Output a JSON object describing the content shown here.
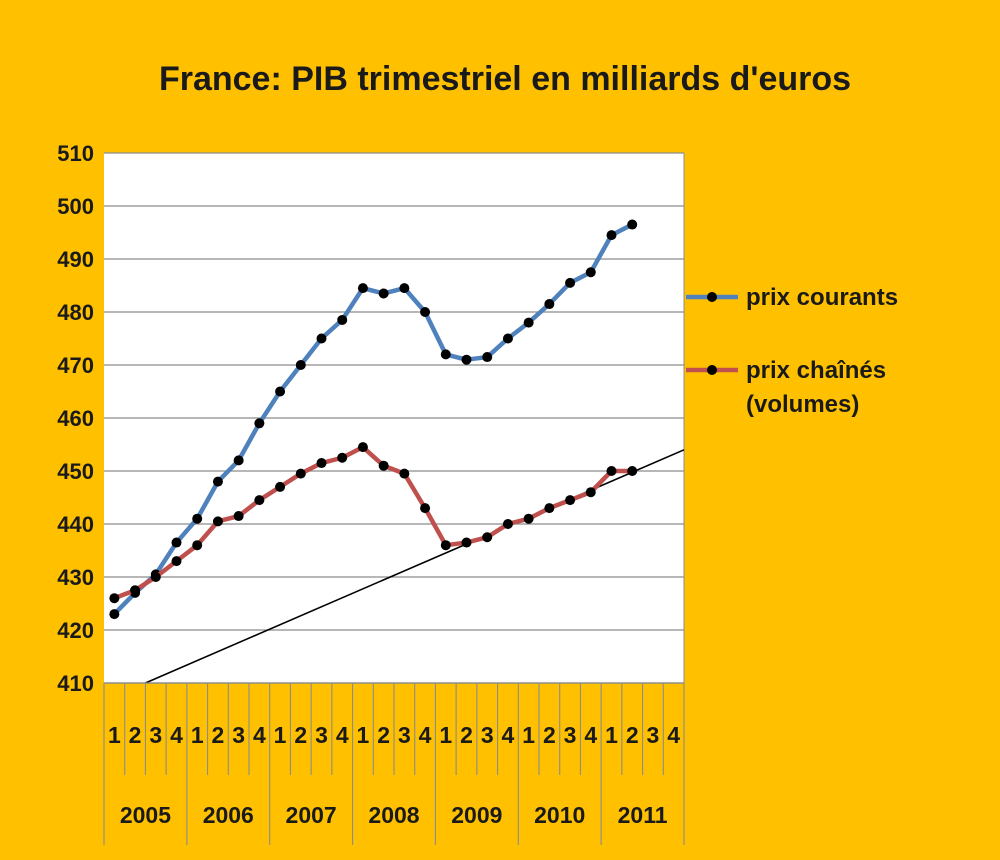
{
  "chart_data": {
    "type": "line",
    "title": "France: PIB trimestriel en milliards d'euros",
    "xlabel": "",
    "ylabel": "",
    "ylim": [
      410,
      510
    ],
    "yticks": [
      "410",
      "420",
      "430",
      "440",
      "450",
      "460",
      "470",
      "480",
      "490",
      "500",
      "510"
    ],
    "grid": true,
    "legend_position": "right",
    "quarter_labels": [
      "1",
      "2",
      "3",
      "4"
    ],
    "years": [
      "2005",
      "2006",
      "2007",
      "2008",
      "2009",
      "2010",
      "2011"
    ],
    "categories": [
      "2005-1",
      "2005-2",
      "2005-3",
      "2005-4",
      "2006-1",
      "2006-2",
      "2006-3",
      "2006-4",
      "2007-1",
      "2007-2",
      "2007-3",
      "2007-4",
      "2008-1",
      "2008-2",
      "2008-3",
      "2008-4",
      "2009-1",
      "2009-2",
      "2009-3",
      "2009-4",
      "2010-1",
      "2010-2",
      "2010-3",
      "2010-4",
      "2011-1",
      "2011-2",
      "2011-3",
      "2011-4"
    ],
    "series": [
      {
        "name": "prix courants",
        "color": "#4f81bd",
        "values": [
          423,
          427,
          430.5,
          436.5,
          441,
          448,
          452,
          459,
          465,
          470,
          475,
          478.5,
          484.5,
          483.5,
          484.5,
          480,
          472,
          471,
          471.5,
          475,
          478,
          481.5,
          485.5,
          487.5,
          494.5,
          496.5,
          null,
          null
        ]
      },
      {
        "name": "prix chaînés\n(volumes)",
        "name_lines": [
          "prix chaînés",
          "(volumes)"
        ],
        "color": "#c0504d",
        "values": [
          426,
          427.5,
          430,
          433,
          436,
          440.5,
          441.5,
          444.5,
          447,
          449.5,
          451.5,
          452.5,
          454.5,
          451,
          449.5,
          443,
          436,
          436.5,
          437.5,
          440,
          441,
          443,
          444.5,
          446,
          450,
          450,
          null,
          null
        ]
      }
    ],
    "trend_line": {
      "color": "#000000",
      "from": {
        "x": 2.0,
        "y": 410
      },
      "to": {
        "x": 28.0,
        "y": 454
      }
    }
  }
}
